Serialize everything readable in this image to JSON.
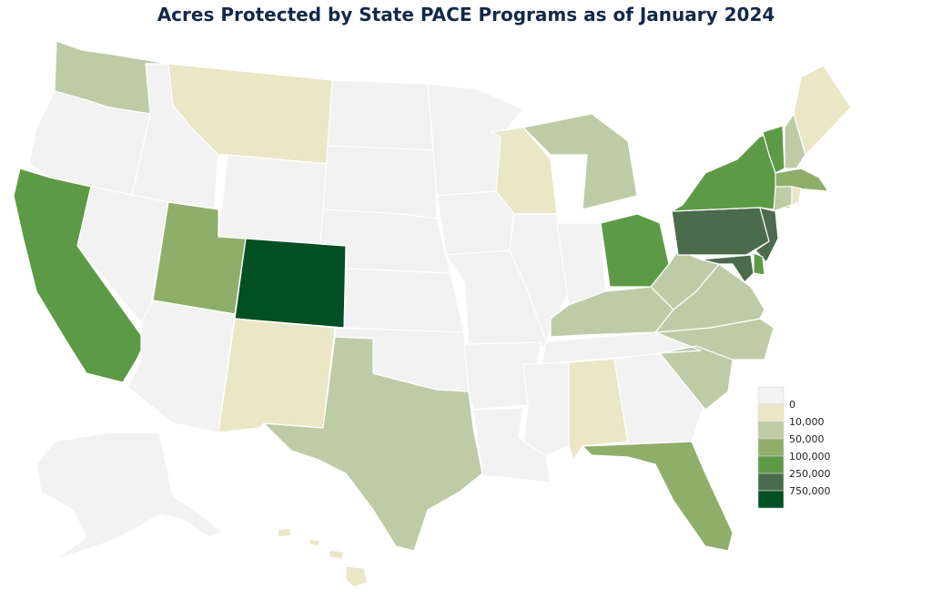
{
  "title": "Acres Protected by State PACE Programs as of January 2024",
  "legend": {
    "bins": [
      {
        "label": "0",
        "color": "#f2f2f2"
      },
      {
        "label": "10,000",
        "color": "#ebe6c6"
      },
      {
        "label": "50,000",
        "color": "#bdcca6"
      },
      {
        "label": "100,000",
        "color": "#8fae6a"
      },
      {
        "label": "250,000",
        "color": "#5d9a45"
      },
      {
        "label": "750,000",
        "color": "#4a6b4c"
      },
      {
        "label": "",
        "color": "#034f24"
      }
    ]
  },
  "states": {
    "WA": 2,
    "OR": 0,
    "CA": 4,
    "ID": 0,
    "NV": 0,
    "MT": 1,
    "WY": 0,
    "UT": 3,
    "AZ": 0,
    "CO": 6,
    "NM": 1,
    "ND": 0,
    "SD": 0,
    "NE": 0,
    "KS": 0,
    "OK": 0,
    "TX": 2,
    "MN": 0,
    "IA": 0,
    "MO": 0,
    "AR": 0,
    "LA": 0,
    "WI": 1,
    "IL": 0,
    "MI": 2,
    "IN": 0,
    "OH": 4,
    "KY": 2,
    "TN": 0,
    "MS": 0,
    "AL": 1,
    "GA": 0,
    "FL": 3,
    "SC": 2,
    "NC": 2,
    "VA": 2,
    "WV": 2,
    "PA": 5,
    "NY": 4,
    "VT": 4,
    "NH": 2,
    "ME": 1,
    "MA": 3,
    "RI": 1,
    "CT": 2,
    "NJ": 5,
    "DE": 4,
    "MD": 5,
    "AK": 0,
    "HI": 1
  }
}
